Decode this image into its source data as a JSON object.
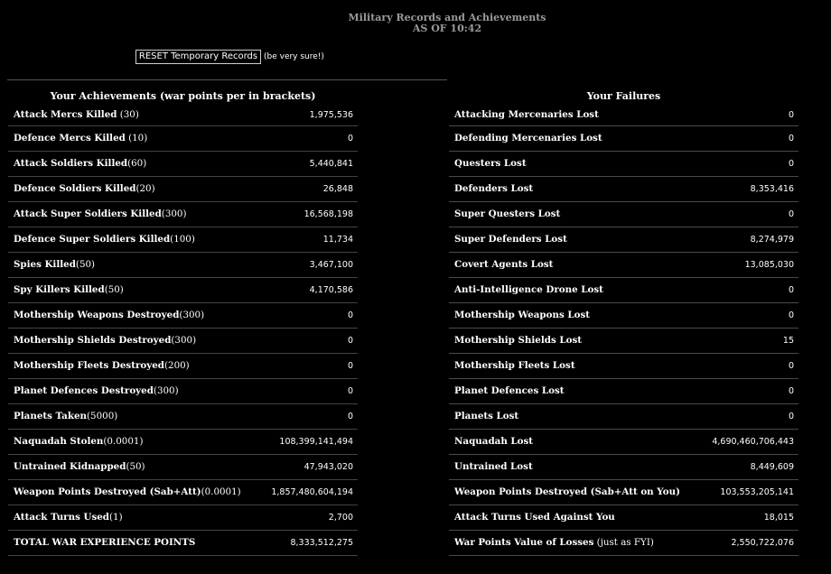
{
  "header": {
    "title": "Military Records and Achievements",
    "as_of": "AS OF 10:42"
  },
  "reset": {
    "button_label": "RESET Temporary Records",
    "note": "(be very sure!)"
  },
  "achievements": {
    "title": "Your Achievements (war points per in brackets)",
    "rows": [
      {
        "label": "Attack Mercs Killed",
        "pts": " (30)",
        "value": "1,975,536"
      },
      {
        "label": "Defence Mercs Killed",
        "pts": " (10)",
        "value": "0"
      },
      {
        "label": "Attack Soldiers Killed",
        "pts": "(60)",
        "value": "5,440,841"
      },
      {
        "label": "Defence Soldiers Killed",
        "pts": "(20)",
        "value": "26,848"
      },
      {
        "label": "Attack Super Soldiers Killed",
        "pts": "(300)",
        "value": "16,568,198"
      },
      {
        "label": "Defence Super Soldiers Killed",
        "pts": "(100)",
        "value": "11,734"
      },
      {
        "label": "Spies Killed",
        "pts": "(50)",
        "value": "3,467,100"
      },
      {
        "label": "Spy Killers Killed",
        "pts": "(50)",
        "value": "4,170,586"
      },
      {
        "label": "Mothership Weapons Destroyed",
        "pts": "(300)",
        "value": "0"
      },
      {
        "label": "Mothership Shields Destroyed",
        "pts": "(300)",
        "value": "0"
      },
      {
        "label": "Mothership Fleets Destroyed",
        "pts": "(200)",
        "value": "0"
      },
      {
        "label": "Planet Defences Destroyed",
        "pts": "(300)",
        "value": "0"
      },
      {
        "label": "Planets Taken",
        "pts": "(5000)",
        "value": "0"
      },
      {
        "label": "Naquadah Stolen",
        "pts": "(0.0001)",
        "value": "108,399,141,494"
      },
      {
        "label": "Untrained Kidnapped",
        "pts": "(50)",
        "value": "47,943,020"
      },
      {
        "label": "Weapon Points Destroyed (Sab+Att)",
        "pts": "(0.0001)",
        "value": "1,857,480,604,194"
      },
      {
        "label": "Attack Turns Used",
        "pts": "(1)",
        "value": "2,700"
      },
      {
        "label": "TOTAL WAR EXPERIENCE POINTS",
        "pts": "",
        "value": "8,333,512,275"
      }
    ]
  },
  "failures": {
    "title": "Your Failures",
    "rows": [
      {
        "label": "Attacking Mercenaries Lost",
        "pts": "",
        "value": "0"
      },
      {
        "label": "Defending Mercenaries Lost",
        "pts": "",
        "value": "0"
      },
      {
        "label": "Questers Lost",
        "pts": "",
        "value": "0"
      },
      {
        "label": "Defenders Lost",
        "pts": "",
        "value": "8,353,416"
      },
      {
        "label": "Super Questers Lost",
        "pts": "",
        "value": "0"
      },
      {
        "label": "Super Defenders Lost",
        "pts": "",
        "value": "8,274,979"
      },
      {
        "label": "Covert Agents Lost",
        "pts": "",
        "value": "13,085,030"
      },
      {
        "label": "Anti-Intelligence Drone Lost",
        "pts": "",
        "value": "0"
      },
      {
        "label": "Mothership Weapons Lost",
        "pts": "",
        "value": "0"
      },
      {
        "label": "Mothership Shields Lost",
        "pts": "",
        "value": "15"
      },
      {
        "label": "Mothership Fleets Lost",
        "pts": "",
        "value": "0"
      },
      {
        "label": "Planet Defences Lost",
        "pts": "",
        "value": "0"
      },
      {
        "label": "Planets Lost",
        "pts": "",
        "value": "0"
      },
      {
        "label": "Naquadah Lost",
        "pts": "",
        "value": "4,690,460,706,443"
      },
      {
        "label": "Untrained Lost",
        "pts": "",
        "value": "8,449,609"
      },
      {
        "label": "Weapon Points Destroyed (Sab+Att on You)",
        "pts": "",
        "value": "103,553,205,141"
      },
      {
        "label": "Attack Turns Used Against You",
        "pts": "",
        "value": "18,015"
      },
      {
        "label": "War Points Value of Losses",
        "pts": " (just as FYI)",
        "value": "2,550,722,076"
      }
    ]
  }
}
